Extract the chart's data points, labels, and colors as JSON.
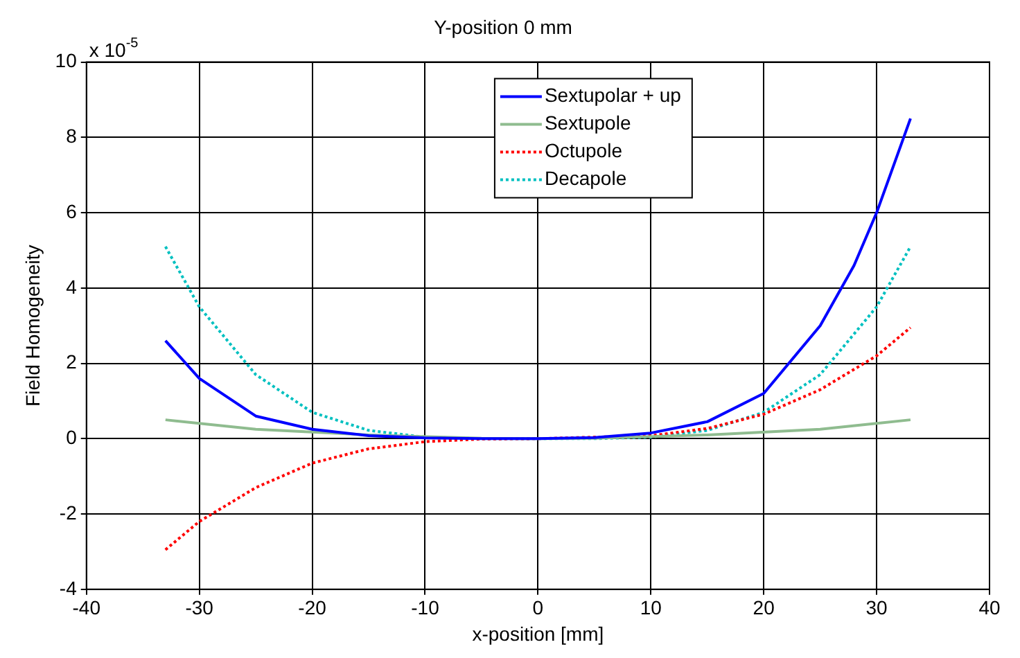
{
  "chart_data": {
    "type": "line",
    "title": "Y-position 0 mm",
    "xlabel": "x-position [mm]",
    "ylabel": "Field Homogeneity",
    "annotations": [
      "x 10$^{-5}$"
    ],
    "xlim": [
      -40,
      40
    ],
    "xticks": [
      -40,
      -30,
      -20,
      -10,
      0,
      10,
      20,
      30,
      40
    ],
    "ylim": [
      -4,
      10
    ],
    "yticks": [
      -4,
      -2,
      0,
      2,
      4,
      6,
      8,
      10
    ],
    "grid": true,
    "legend": "top",
    "marker": "none",
    "series": [
      {
        "name": "Sextupolar + up",
        "color": "#0000ff",
        "line_style": "solid",
        "x": [
          -33,
          -30,
          -25,
          -20,
          -15,
          -10,
          -5,
          0,
          5,
          10,
          15,
          20,
          25,
          28,
          30,
          33
        ],
        "values": [
          2.6,
          1.6,
          0.6,
          0.25,
          0.08,
          0.02,
          0,
          0,
          0.03,
          0.15,
          0.45,
          1.2,
          3.0,
          4.6,
          6.0,
          8.5
        ]
      },
      {
        "name": "Sextupole",
        "color": "#8fbc8f",
        "line_style": "solid",
        "x": [
          -33,
          -25,
          -15,
          -5,
          0,
          5,
          15,
          25,
          33
        ],
        "values": [
          0.5,
          0.25,
          0.1,
          0.01,
          0,
          0.01,
          0.1,
          0.25,
          0.5
        ]
      },
      {
        "name": "Octupole",
        "color": "#ff0000",
        "line_style": "dotted",
        "x": [
          -33,
          -30,
          -25,
          -20,
          -15,
          -10,
          -5,
          0,
          10,
          15,
          20,
          25,
          30,
          33
        ],
        "values": [
          -2.95,
          -2.2,
          -1.3,
          -0.65,
          -0.27,
          -0.08,
          -0.01,
          0,
          0.08,
          0.27,
          0.65,
          1.3,
          2.2,
          2.95
        ]
      },
      {
        "name": "Decapole",
        "color": "#00c0c0",
        "line_style": "dotted",
        "x": [
          -33,
          -30,
          -25,
          -20,
          -15,
          -10,
          -5,
          0,
          5,
          10,
          15,
          20,
          25,
          30,
          33
        ],
        "values": [
          5.1,
          3.5,
          1.7,
          0.7,
          0.22,
          0.04,
          0,
          0,
          0,
          0.04,
          0.22,
          0.7,
          1.7,
          3.5,
          5.1
        ]
      }
    ]
  }
}
